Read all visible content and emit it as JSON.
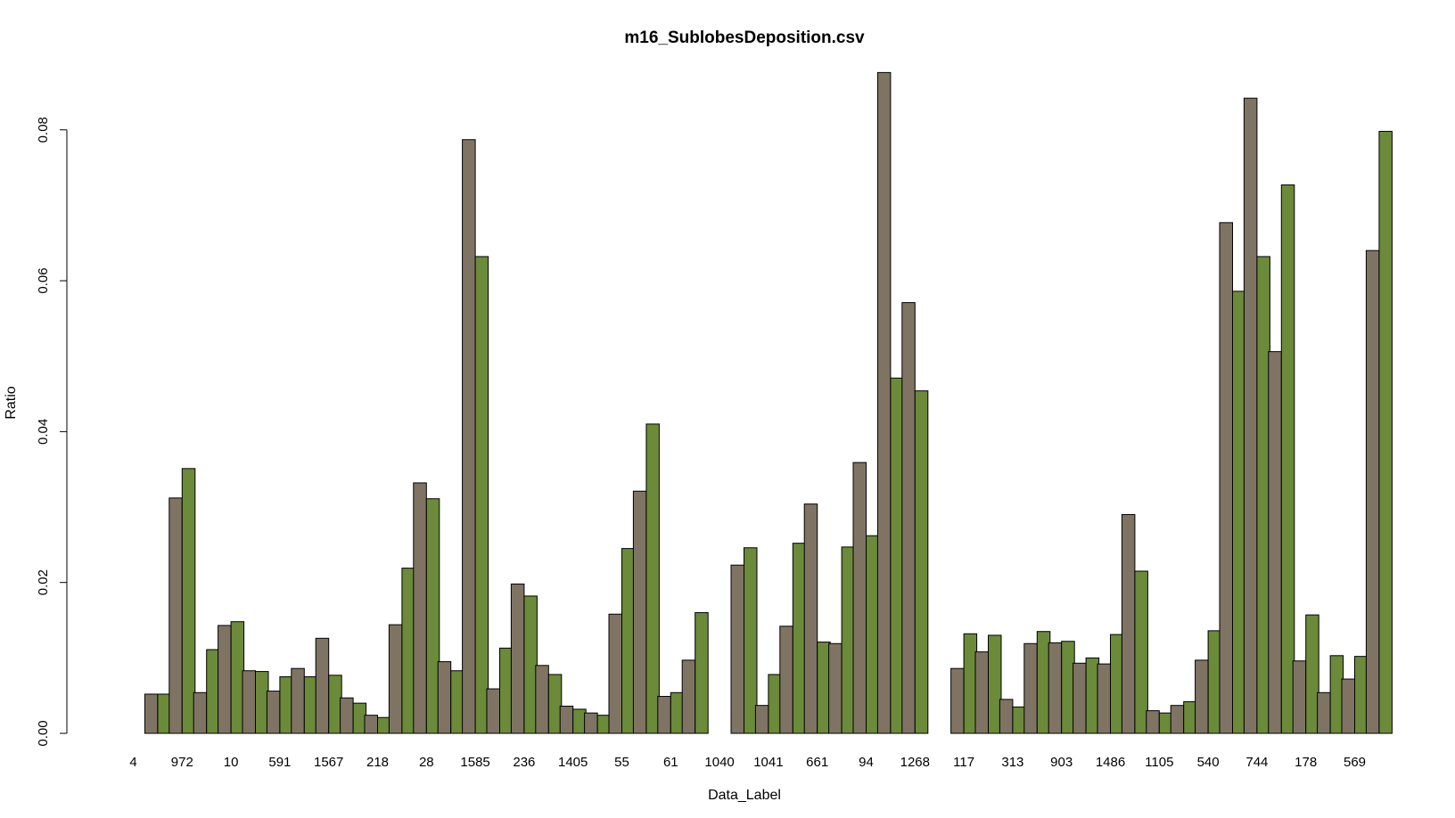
{
  "chart_data": {
    "type": "bar",
    "title": "m16_SublobesDeposition.csv",
    "xlabel": "Data_Label",
    "ylabel": "Ratio",
    "ylim": [
      0,
      0.088
    ],
    "yticks": [
      "0.00",
      "0.02",
      "0.04",
      "0.06",
      "0.08"
    ],
    "ytick_values": [
      0,
      0.02,
      0.04,
      0.06,
      0.08
    ],
    "series_colors": [
      "#7f7464",
      "#6b8a3a"
    ],
    "categories": [
      "4",
      "",
      "972",
      "",
      "10",
      "",
      "591",
      "",
      "1567",
      "",
      "218",
      "",
      "28",
      "",
      "1585",
      "",
      "236",
      "",
      "1405",
      "",
      "55",
      "",
      "61",
      "",
      "1040",
      "",
      "1041",
      "",
      "661",
      "",
      "94",
      "",
      "1268",
      "",
      "117",
      "",
      "313",
      "",
      "903",
      "",
      "1486",
      "",
      "1105",
      "",
      "540",
      "",
      "744",
      "",
      "178",
      "",
      "569",
      ""
    ],
    "series": [
      {
        "name": "series-1",
        "values": [
          0.0,
          0.0052,
          0.0312,
          0.0054,
          0.0143,
          0.0083,
          0.0056,
          0.0086,
          0.0126,
          0.0047,
          0.0024,
          0.0144,
          0.0332,
          0.0095,
          0.0787,
          0.0059,
          0.0198,
          0.009,
          0.0036,
          0.0027,
          0.0158,
          0.0321,
          0.0049,
          0.0097,
          0.0,
          0.0223,
          0.0037,
          0.0142,
          0.0304,
          0.0119,
          0.0359,
          0.0876,
          0.0571,
          0.0,
          0.0086,
          0.0108,
          0.0045,
          0.0119,
          0.012,
          0.0093,
          0.0092,
          0.029,
          0.003,
          0.0037,
          0.0097,
          0.0677,
          0.0842,
          0.0506,
          0.0096,
          0.0054,
          0.0072,
          0.064
        ]
      },
      {
        "name": "series-2",
        "values": [
          0.0,
          0.0052,
          0.0351,
          0.0111,
          0.0148,
          0.0082,
          0.0075,
          0.0075,
          0.0077,
          0.004,
          0.0021,
          0.0219,
          0.0311,
          0.0083,
          0.0632,
          0.0113,
          0.0182,
          0.0078,
          0.0032,
          0.0024,
          0.0245,
          0.041,
          0.0054,
          0.016,
          0.0,
          0.0246,
          0.0078,
          0.0252,
          0.0121,
          0.0247,
          0.0262,
          0.0471,
          0.0454,
          0.0,
          0.0132,
          0.013,
          0.0035,
          0.0135,
          0.0122,
          0.01,
          0.0131,
          0.0215,
          0.0027,
          0.0042,
          0.0136,
          0.0586,
          0.0632,
          0.0727,
          0.0157,
          0.0103,
          0.0102,
          0.0798
        ]
      }
    ]
  }
}
